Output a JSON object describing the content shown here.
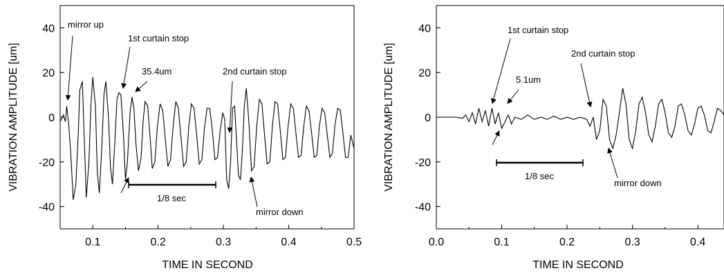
{
  "chart_data": [
    {
      "type": "line",
      "xlabel": "TIME IN SECOND",
      "ylabel": "VIBRATION AMPLITUDE [um]",
      "xlim": [
        0.05,
        0.5
      ],
      "ylim": [
        -50,
        50
      ],
      "xticks": [
        0.1,
        0.2,
        0.3,
        0.4,
        0.5
      ],
      "xtick_labels": [
        "0.1",
        "0.2",
        "0.3",
        "0.4",
        "0.5"
      ],
      "yticks": [
        -40,
        -20,
        0,
        20,
        40
      ],
      "ytick_labels": [
        "-40",
        "-20",
        "0",
        "20",
        "40"
      ],
      "series": [
        {
          "x": [
            0.05,
            0.055,
            0.058,
            0.06,
            0.063,
            0.066,
            0.07,
            0.074,
            0.078,
            0.08,
            0.084,
            0.087,
            0.09,
            0.094,
            0.097,
            0.1,
            0.104,
            0.107,
            0.11,
            0.114,
            0.117,
            0.12,
            0.124,
            0.127,
            0.13,
            0.134,
            0.137,
            0.14,
            0.143,
            0.147,
            0.15,
            0.153,
            0.157,
            0.16,
            0.163,
            0.166,
            0.17,
            0.174,
            0.177,
            0.18,
            0.184,
            0.188,
            0.191,
            0.195,
            0.199,
            0.203,
            0.207,
            0.211,
            0.215,
            0.219,
            0.223,
            0.227,
            0.231,
            0.235,
            0.239,
            0.243,
            0.247,
            0.251,
            0.255,
            0.259,
            0.263,
            0.267,
            0.271,
            0.275,
            0.279,
            0.283,
            0.287,
            0.291,
            0.295,
            0.299,
            0.302,
            0.305,
            0.308,
            0.311,
            0.314,
            0.317,
            0.32,
            0.323,
            0.326,
            0.329,
            0.332,
            0.335,
            0.339,
            0.343,
            0.347,
            0.351,
            0.355,
            0.359,
            0.363,
            0.367,
            0.371,
            0.375,
            0.379,
            0.383,
            0.387,
            0.391,
            0.395,
            0.399,
            0.403,
            0.407,
            0.411,
            0.415,
            0.419,
            0.423,
            0.427,
            0.431,
            0.435,
            0.439,
            0.443,
            0.447,
            0.451,
            0.455,
            0.459,
            0.463,
            0.467,
            0.471,
            0.475,
            0.479,
            0.483,
            0.487,
            0.491,
            0.495,
            0.5
          ],
          "y": [
            -2,
            1,
            -2,
            5,
            -3,
            -15,
            -37,
            -30,
            -6,
            12,
            16,
            -10,
            -36,
            -20,
            5,
            18,
            5,
            -25,
            -34,
            -12,
            10,
            16,
            0,
            -22,
            -30,
            -10,
            8,
            11,
            10,
            -8,
            -28,
            -20,
            2,
            9,
            4,
            -12,
            -24,
            -18,
            -2,
            7,
            5,
            -10,
            -23,
            -20,
            -4,
            6,
            3,
            -10,
            -22,
            -19,
            -4,
            7,
            4,
            -9,
            -22,
            -20,
            -4,
            6,
            4,
            -8,
            -21,
            -19,
            -5,
            4,
            4,
            -6,
            -19,
            -18,
            -6,
            2,
            -1,
            -28,
            -32,
            -20,
            4,
            5,
            -10,
            -26,
            -28,
            -15,
            5,
            13,
            -2,
            -24,
            -22,
            -4,
            8,
            6,
            -8,
            -21,
            -20,
            -4,
            7,
            6,
            -6,
            -19,
            -18,
            -4,
            6,
            4,
            -7,
            -18,
            -17,
            -4,
            5,
            3,
            -7,
            -18,
            -17,
            -4,
            4,
            2,
            -8,
            -18,
            -16,
            -3,
            4,
            3,
            -7,
            -18,
            -18,
            -8,
            -14
          ]
        }
      ],
      "annotations": [
        "mirror up",
        "1st curtain stop",
        "35.4um",
        "2nd curtain stop",
        "1/8 sec",
        "mirror down"
      ]
    },
    {
      "type": "line",
      "xlabel": "TIME IN SECOND",
      "ylabel": "VIBRATION AMPLITUDE [um]",
      "xlim": [
        0.0,
        0.44
      ],
      "ylim": [
        -50,
        50
      ],
      "xticks": [
        0.0,
        0.1,
        0.2,
        0.3,
        0.4
      ],
      "xtick_labels": [
        "0.0",
        "0.1",
        "0.2",
        "0.3",
        "0.4"
      ],
      "yticks": [
        -40,
        -20,
        0,
        20,
        40
      ],
      "ytick_labels": [
        "-40",
        "-20",
        "0",
        "20",
        "40"
      ],
      "series": [
        {
          "x": [
            0.0,
            0.01,
            0.02,
            0.03,
            0.04,
            0.045,
            0.05,
            0.055,
            0.06,
            0.065,
            0.07,
            0.075,
            0.08,
            0.085,
            0.09,
            0.095,
            0.1,
            0.105,
            0.11,
            0.115,
            0.12,
            0.13,
            0.14,
            0.15,
            0.16,
            0.17,
            0.18,
            0.19,
            0.2,
            0.21,
            0.22,
            0.23,
            0.235,
            0.24,
            0.245,
            0.25,
            0.255,
            0.26,
            0.265,
            0.27,
            0.275,
            0.28,
            0.285,
            0.29,
            0.295,
            0.3,
            0.305,
            0.31,
            0.315,
            0.32,
            0.325,
            0.33,
            0.335,
            0.34,
            0.345,
            0.35,
            0.355,
            0.36,
            0.365,
            0.37,
            0.375,
            0.38,
            0.385,
            0.39,
            0.395,
            0.4,
            0.405,
            0.41,
            0.415,
            0.42,
            0.425,
            0.43,
            0.435,
            0.44
          ],
          "y": [
            0,
            0,
            0,
            0,
            -0.5,
            1,
            -2,
            2,
            -3,
            4,
            -2,
            3,
            -4,
            4,
            -3,
            2,
            -5,
            -2,
            1,
            -3,
            0,
            -1,
            1,
            -1,
            0,
            -1,
            0.5,
            -1,
            0,
            -1,
            0,
            -1,
            -4,
            0,
            -10,
            -6,
            8,
            5,
            -10,
            -14,
            -8,
            2,
            13,
            6,
            -10,
            -14,
            -6,
            6,
            9,
            2,
            -8,
            -11,
            -4,
            6,
            8,
            2,
            -7,
            -9,
            -4,
            5,
            6,
            1,
            -6,
            -8,
            -3,
            4,
            5,
            1,
            -6,
            -7,
            -2,
            4,
            3,
            1
          ]
        }
      ],
      "annotations": [
        "1st curtain stop",
        "5.1um",
        "2nd curtain stop",
        "1/8 sec",
        "mirror down"
      ]
    }
  ]
}
